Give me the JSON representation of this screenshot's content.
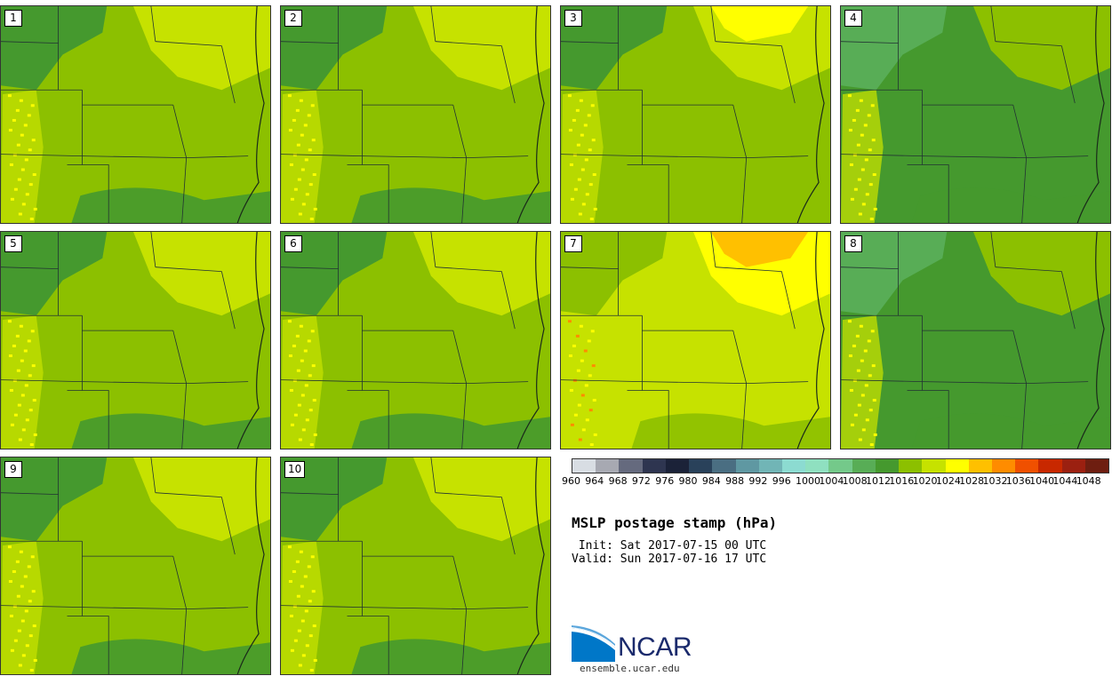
{
  "panels": [
    {
      "label": "1",
      "tone": "base"
    },
    {
      "label": "2",
      "tone": "base"
    },
    {
      "label": "3",
      "tone": "warm"
    },
    {
      "label": "4",
      "tone": "cool"
    },
    {
      "label": "5",
      "tone": "base"
    },
    {
      "label": "6",
      "tone": "base"
    },
    {
      "label": "7",
      "tone": "hot"
    },
    {
      "label": "8",
      "tone": "cool"
    },
    {
      "label": "9",
      "tone": "base"
    },
    {
      "label": "10",
      "tone": "base"
    }
  ],
  "colorbar": {
    "colors": [
      "#d8dde3",
      "#a7a9b2",
      "#656a7e",
      "#2e3550",
      "#1b2238",
      "#29415a",
      "#4a6e82",
      "#5f98a2",
      "#71b5b6",
      "#8cdbd1",
      "#8fe0c0",
      "#74c98a",
      "#58ad56",
      "#45992e",
      "#8cc000",
      "#c6e200",
      "#ffff00",
      "#ffc000",
      "#ff8c00",
      "#f05000",
      "#c82800",
      "#9b2010",
      "#6e1e10"
    ],
    "ticks": [
      "960",
      "964",
      "968",
      "972",
      "976",
      "980",
      "984",
      "988",
      "992",
      "996",
      "1000",
      "1004",
      "1008",
      "1012",
      "1016",
      "1020",
      "1024",
      "1028",
      "1032",
      "1036",
      "1040",
      "1044",
      "1048"
    ]
  },
  "title": "MSLP postage stamp (hPa)",
  "init_line": " Init: Sat 2017-07-15 00 UTC",
  "valid_line": "Valid: Sun 2017-07-16 17 UTC",
  "logo": {
    "text": "NCAR",
    "color": "#1a2a6c",
    "accent": "#0077c8"
  },
  "site_url": "ensemble.ucar.edu"
}
